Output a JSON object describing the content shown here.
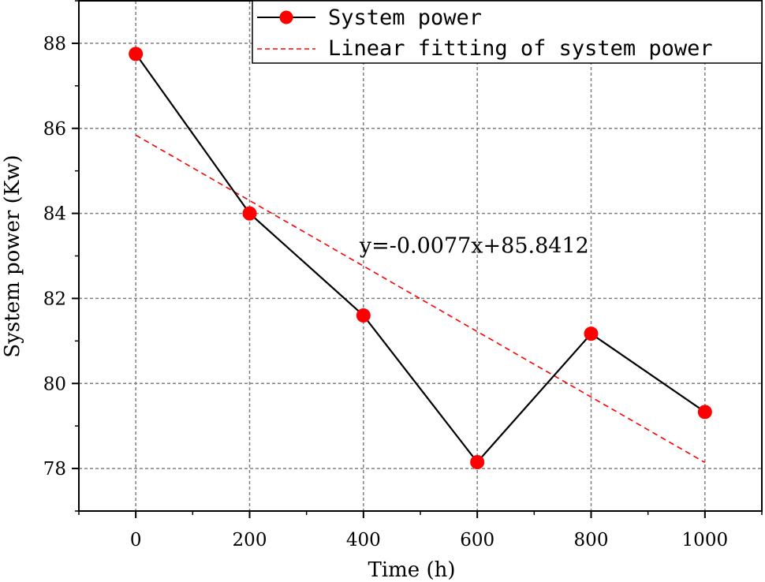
{
  "chart_data": {
    "type": "line",
    "xlabel": "Time (h)",
    "ylabel": "System power (Kw)",
    "xlim": [
      -100,
      1100
    ],
    "ylim": [
      77,
      89
    ],
    "xticks": [
      0,
      200,
      400,
      600,
      800,
      1000
    ],
    "yticks": [
      78,
      80,
      82,
      84,
      86,
      88
    ],
    "grid": true,
    "legend_position": "top-right",
    "series": [
      {
        "name": "System power",
        "style": "solid-line-with-markers",
        "color": "#000000",
        "marker_color": "#ff0000",
        "x": [
          0,
          200,
          400,
          600,
          800,
          1000
        ],
        "y": [
          87.75,
          84.0,
          81.6,
          78.15,
          81.17,
          79.33
        ]
      },
      {
        "name": "Linear fitting of system power",
        "style": "dashed-line",
        "color": "#ff0000",
        "x": [
          0,
          1000
        ],
        "y": [
          85.8412,
          78.1412
        ]
      }
    ],
    "annotations": [
      {
        "text": "y=-0.0077x+85.8412",
        "x": 400,
        "y": 83.3
      }
    ]
  }
}
